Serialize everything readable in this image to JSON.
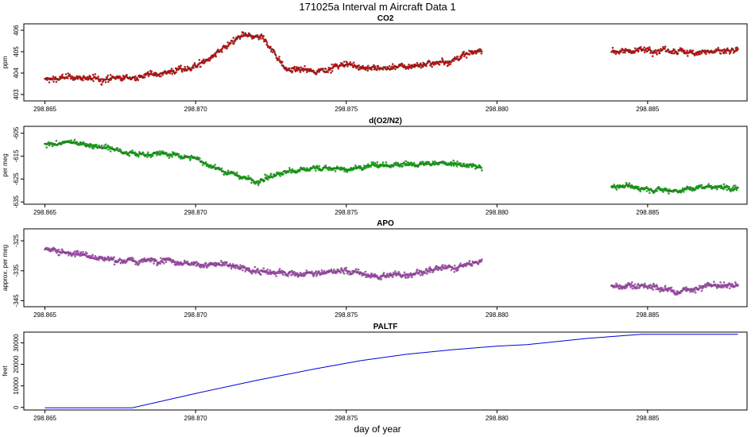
{
  "title": "171025a   Interval m Aircraft Data 1",
  "xlabel": "day of year",
  "colors": {
    "co2": "#ff0000",
    "o2n2": "#00e000",
    "apo": "#dd55ee",
    "paltf": "#0000dd",
    "axis": "#000000"
  },
  "chart_data": [
    {
      "type": "scatter",
      "title": "CO2",
      "ylabel": "ppm",
      "xlim": [
        298.8643,
        298.8883
      ],
      "ylim": [
        402.7,
        406.3
      ],
      "xticks": [
        "298.865",
        "298.870",
        "298.875",
        "298.880",
        "298.885"
      ],
      "yticks": [
        "403",
        "404",
        "405",
        "406"
      ],
      "segments": [
        {
          "x0": 298.865,
          "x1": 298.8795,
          "anchors": [
            [
              298.865,
              403.7
            ],
            [
              298.866,
              403.8
            ],
            [
              298.867,
              403.7
            ],
            [
              298.868,
              403.8
            ],
            [
              298.8688,
              404.0
            ],
            [
              298.8697,
              404.2
            ],
            [
              298.8703,
              404.5
            ],
            [
              298.871,
              405.2
            ],
            [
              298.8715,
              405.7
            ],
            [
              298.8722,
              405.7
            ],
            [
              298.8726,
              405.0
            ],
            [
              298.873,
              404.2
            ],
            [
              298.874,
              404.1
            ],
            [
              298.875,
              404.4
            ],
            [
              298.876,
              404.2
            ],
            [
              298.877,
              404.3
            ],
            [
              298.8785,
              404.6
            ],
            [
              298.8795,
              405.1
            ]
          ]
        },
        {
          "x0": 298.8838,
          "x1": 298.888,
          "anchors": [
            [
              298.8838,
              405.0
            ],
            [
              298.885,
              405.1
            ],
            [
              298.886,
              405.0
            ],
            [
              298.887,
              405.0
            ],
            [
              298.888,
              405.0
            ]
          ]
        }
      ],
      "noise": 0.35
    },
    {
      "type": "scatter",
      "title": "d(O2/N2)",
      "ylabel": "per meg",
      "xlim": [
        298.8643,
        298.8883
      ],
      "ylim": [
        -636,
        -602
      ],
      "xticks": [
        "298.865",
        "298.870",
        "298.875",
        "298.880",
        "298.885"
      ],
      "yticks": [
        "-605",
        "-615",
        "-625",
        "-635"
      ],
      "segments": [
        {
          "x0": 298.865,
          "x1": 298.8795,
          "anchors": [
            [
              298.865,
              -610
            ],
            [
              298.866,
              -609
            ],
            [
              298.867,
              -611
            ],
            [
              298.868,
              -614
            ],
            [
              298.869,
              -614
            ],
            [
              298.87,
              -616
            ],
            [
              298.871,
              -622
            ],
            [
              298.872,
              -626
            ],
            [
              298.873,
              -622
            ],
            [
              298.874,
              -620
            ],
            [
              298.875,
              -621
            ],
            [
              298.876,
              -619
            ],
            [
              298.877,
              -619
            ],
            [
              298.8785,
              -618
            ],
            [
              298.8795,
              -620
            ]
          ]
        },
        {
          "x0": 298.8838,
          "x1": 298.888,
          "anchors": [
            [
              298.8838,
              -628
            ],
            [
              298.885,
              -629
            ],
            [
              298.886,
              -630
            ],
            [
              298.887,
              -628
            ],
            [
              298.888,
              -629
            ]
          ]
        }
      ],
      "noise": 2.8
    },
    {
      "type": "scatter",
      "title": "APO",
      "ylabel": "approx. per meg",
      "xlim": [
        298.8643,
        298.8883
      ],
      "ylim": [
        -347,
        -321
      ],
      "xticks": [
        "298.865",
        "298.870",
        "298.875",
        "298.880",
        "298.885"
      ],
      "yticks": [
        "-325",
        "-335",
        "-345"
      ],
      "segments": [
        {
          "x0": 298.865,
          "x1": 298.8795,
          "anchors": [
            [
              298.865,
              -328
            ],
            [
              298.866,
              -329
            ],
            [
              298.867,
              -331
            ],
            [
              298.868,
              -332
            ],
            [
              298.869,
              -331
            ],
            [
              298.87,
              -333
            ],
            [
              298.871,
              -333
            ],
            [
              298.872,
              -335
            ],
            [
              298.873,
              -336
            ],
            [
              298.874,
              -336
            ],
            [
              298.875,
              -335
            ],
            [
              298.876,
              -337
            ],
            [
              298.877,
              -336
            ],
            [
              298.8785,
              -334
            ],
            [
              298.8795,
              -332
            ]
          ]
        },
        {
          "x0": 298.8838,
          "x1": 298.888,
          "anchors": [
            [
              298.8838,
              -340
            ],
            [
              298.885,
              -340
            ],
            [
              298.886,
              -342
            ],
            [
              298.887,
              -340
            ],
            [
              298.888,
              -340
            ]
          ]
        }
      ],
      "noise": 2.4
    },
    {
      "type": "line",
      "title": "PALTF",
      "ylabel": "feet",
      "xlim": [
        298.8643,
        298.8883
      ],
      "ylim": [
        -1200,
        35000
      ],
      "xticks": [
        "298.865",
        "298.870",
        "298.875",
        "298.880",
        "298.885"
      ],
      "yticks": [
        "0",
        "10000",
        "20000",
        "30000"
      ],
      "x": [
        298.865,
        298.8679,
        298.87,
        298.872,
        298.874,
        298.8755,
        298.877,
        298.8785,
        298.88,
        298.881,
        298.883,
        298.8848,
        298.8865,
        298.888
      ],
      "y": [
        -200,
        -200,
        6500,
        12500,
        18000,
        21800,
        24700,
        26800,
        28500,
        29200,
        32100,
        34000,
        34000,
        34000
      ]
    }
  ]
}
